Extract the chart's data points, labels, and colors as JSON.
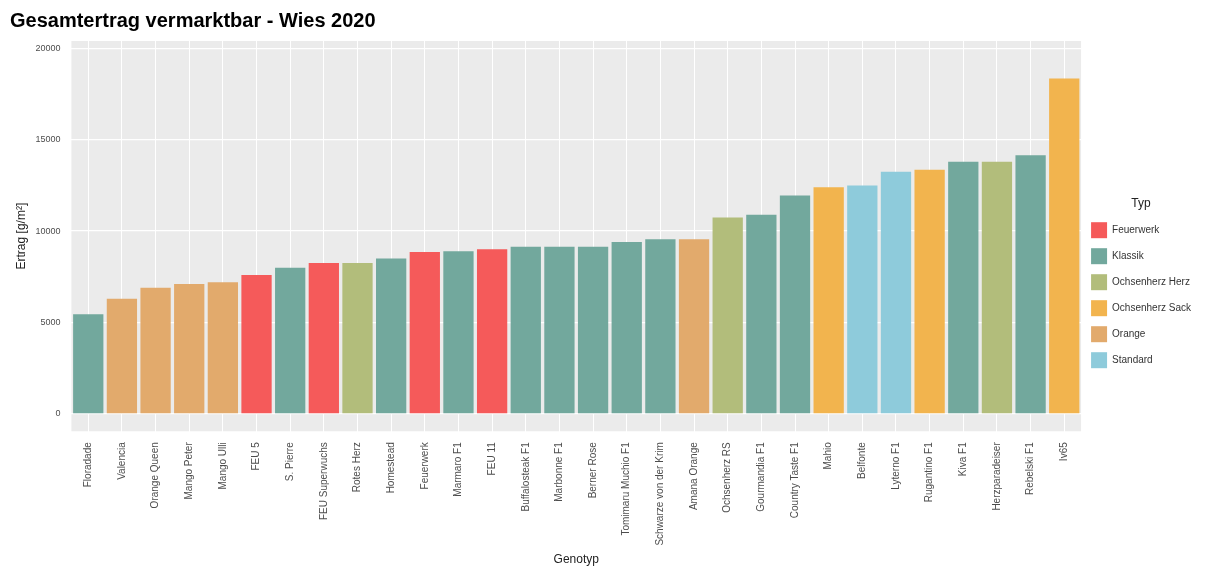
{
  "chart_data": {
    "type": "bar",
    "title": "Gesamtertrag vermarktbar - Wies 2020",
    "xlabel": "Genotyp",
    "ylabel": "Ertrag [g/m²]",
    "legend_title": "Typ",
    "legend": "right",
    "grid": true,
    "categories": [
      "Floradade",
      "Valencia",
      "Orange Queen",
      "Mango Peter",
      "Mango Ulli",
      "FEU 5",
      "S. Pierre",
      "FEU Superwuchs",
      "Rotes Herz",
      "Homestead",
      "Feuerwerk",
      "Marmaro F1",
      "FEU 11",
      "Buffalosteak F1",
      "Marbonne F1",
      "Berner Rose",
      "Tomimaru Muchio F1",
      "Schwarze von der Krim",
      "Amana Orange",
      "Ochsenherz RS",
      "Gourmandia F1",
      "Country Taste F1",
      "Mahio",
      "Belfonte",
      "Lyterno F1",
      "Rugantino F1",
      "Kiva F1",
      "Herzparadeiser",
      "Rebelski F1",
      "Iv65"
    ],
    "ylim": [
      -950,
      20400
    ],
    "yticks": [
      0,
      5000,
      10000,
      15000,
      20000
    ],
    "series": [
      {
        "name": "Feuerwerk",
        "color": "#f55a5a",
        "values": [
          null,
          null,
          null,
          null,
          null,
          7600,
          null,
          8250,
          null,
          null,
          8850,
          null,
          9000,
          null,
          null,
          null,
          null,
          null,
          null,
          null,
          null,
          null,
          null,
          null,
          null,
          null,
          null,
          null,
          null,
          null
        ]
      },
      {
        "name": "Klassik",
        "color": "#72a89d",
        "values": [
          5450,
          null,
          null,
          null,
          null,
          null,
          8000,
          null,
          null,
          8500,
          null,
          8900,
          null,
          9150,
          9150,
          9150,
          9400,
          9550,
          null,
          null,
          10900,
          11950,
          null,
          null,
          null,
          null,
          13800,
          null,
          14150,
          null
        ]
      },
      {
        "name": "Ochsenherz Herz",
        "color": "#b2bd7b",
        "values": [
          null,
          null,
          null,
          null,
          null,
          null,
          null,
          null,
          8250,
          null,
          null,
          null,
          null,
          null,
          null,
          null,
          null,
          null,
          null,
          10750,
          null,
          null,
          null,
          null,
          null,
          null,
          null,
          13800,
          null,
          null
        ]
      },
      {
        "name": "Ochsenherz Sack",
        "color": "#f2b44e",
        "values": [
          null,
          null,
          null,
          null,
          null,
          null,
          null,
          null,
          null,
          null,
          null,
          null,
          null,
          null,
          null,
          null,
          null,
          null,
          null,
          null,
          null,
          null,
          12400,
          null,
          null,
          13350,
          null,
          null,
          null,
          18350
        ]
      },
      {
        "name": "Orange",
        "color": "#e2aa6c",
        "values": [
          null,
          6300,
          6900,
          7100,
          7200,
          null,
          null,
          null,
          null,
          null,
          null,
          null,
          null,
          null,
          null,
          null,
          null,
          null,
          9550,
          null,
          null,
          null,
          null,
          null,
          null,
          null,
          null,
          null,
          null,
          null
        ]
      },
      {
        "name": "Standard",
        "color": "#8ecbdb",
        "values": [
          null,
          null,
          null,
          null,
          null,
          null,
          null,
          null,
          null,
          null,
          null,
          null,
          null,
          null,
          null,
          null,
          null,
          null,
          null,
          null,
          null,
          null,
          null,
          12500,
          13250,
          null,
          null,
          null,
          null,
          null
        ]
      }
    ]
  }
}
